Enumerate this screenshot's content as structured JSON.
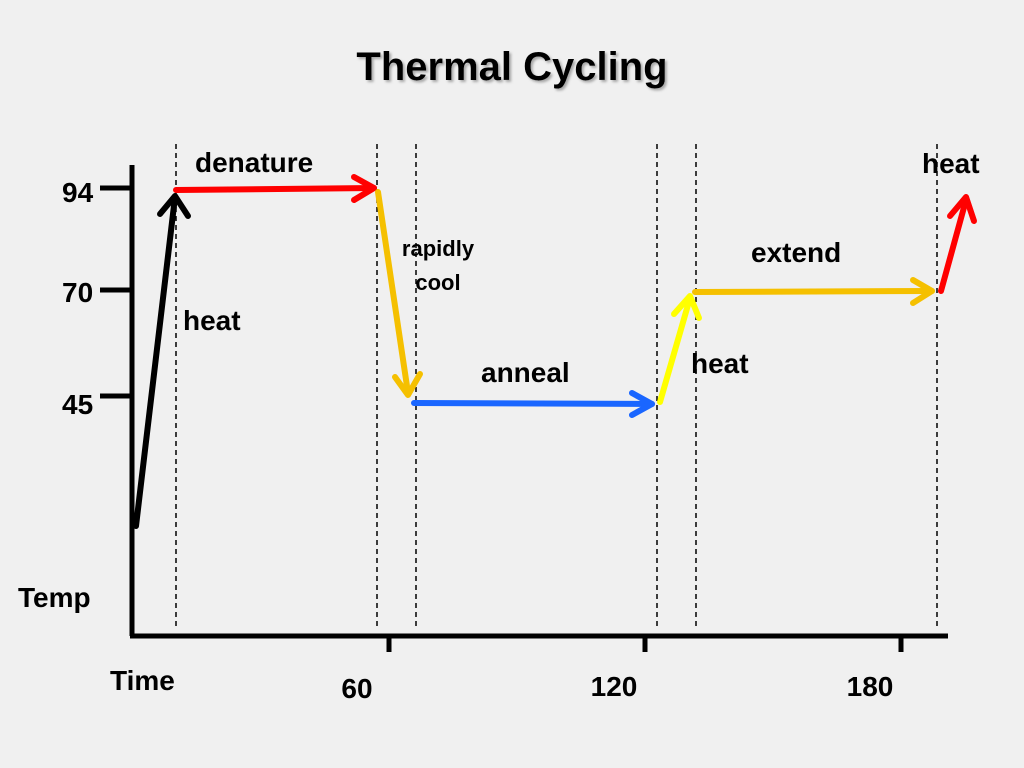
{
  "title": "Thermal Cycling",
  "axes": {
    "y_label": "Temp",
    "x_label": "Time",
    "y_ticks": [
      "94",
      "70",
      "45"
    ],
    "x_ticks": [
      "60",
      "120",
      "180"
    ]
  },
  "steps": [
    {
      "label": "heat",
      "color": "#000000"
    },
    {
      "label": "denature",
      "color": "#ff0000"
    },
    {
      "label": "rapidly",
      "label2": "cool",
      "color": "#f5c000"
    },
    {
      "label": "anneal",
      "color": "#1a66ff"
    },
    {
      "label": "heat",
      "color": "#ffff00"
    },
    {
      "label": "extend",
      "color": "#f5c000"
    },
    {
      "label": "heat",
      "color": "#ff0000"
    }
  ]
}
